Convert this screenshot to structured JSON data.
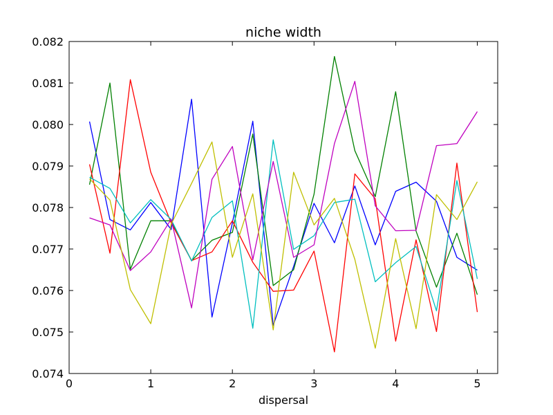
{
  "chart_data": {
    "type": "line",
    "title": "niche width",
    "xlabel": "dispersal",
    "ylabel": "",
    "xlim": [
      0,
      5.25
    ],
    "ylim": [
      0.074,
      0.082
    ],
    "xticks": [
      0,
      1,
      2,
      3,
      4,
      5
    ],
    "xtick_labels": [
      "0",
      "1",
      "2",
      "3",
      "4",
      "5"
    ],
    "yticks": [
      0.074,
      0.075,
      0.076,
      0.077,
      0.078,
      0.079,
      0.08,
      0.081,
      0.082
    ],
    "ytick_labels": [
      "0.074",
      "0.075",
      "0.076",
      "0.077",
      "0.078",
      "0.079",
      "0.080",
      "0.081",
      "0.082"
    ],
    "grid": false,
    "x": [
      0.25,
      0.5,
      0.75,
      1.0,
      1.25,
      1.5,
      1.75,
      2.0,
      2.25,
      2.5,
      2.75,
      3.0,
      3.25,
      3.5,
      3.75,
      4.0,
      4.25,
      4.5,
      4.75,
      5.0
    ],
    "series": [
      {
        "color": "#0000ff",
        "values": [
          0.08007,
          0.07771,
          0.07746,
          0.07812,
          0.07747,
          0.08061,
          0.07536,
          0.07763,
          0.08008,
          0.07516,
          0.07658,
          0.0781,
          0.07715,
          0.07852,
          0.0771,
          0.07839,
          0.07861,
          0.07815,
          0.0768,
          0.07649
        ]
      },
      {
        "color": "#008000",
        "values": [
          0.07855,
          0.081,
          0.07651,
          0.07768,
          0.07768,
          0.07672,
          0.07721,
          0.0774,
          0.07977,
          0.07612,
          0.0765,
          0.07832,
          0.08164,
          0.07937,
          0.07826,
          0.08079,
          0.07743,
          0.07608,
          0.07738,
          0.0759
        ]
      },
      {
        "color": "#ff0000",
        "values": [
          0.07904,
          0.0769,
          0.08108,
          0.07885,
          0.07763,
          0.07672,
          0.07693,
          0.07768,
          0.07668,
          0.07598,
          0.07601,
          0.07695,
          0.07452,
          0.07881,
          0.07821,
          0.07478,
          0.07722,
          0.07501,
          0.07907,
          0.07548
        ]
      },
      {
        "color": "#00bfbf",
        "values": [
          0.07873,
          0.07846,
          0.07763,
          0.07819,
          0.07771,
          0.07671,
          0.07776,
          0.07816,
          0.07509,
          0.07963,
          0.07699,
          0.07732,
          0.07812,
          0.0782,
          0.07621,
          0.07667,
          0.07706,
          0.07551,
          0.07865,
          0.07628
        ]
      },
      {
        "color": "#bf00bf",
        "values": [
          0.07775,
          0.07758,
          0.07648,
          0.07693,
          0.07772,
          0.07558,
          0.07868,
          0.07947,
          0.07674,
          0.07911,
          0.0768,
          0.0771,
          0.07954,
          0.08104,
          0.07804,
          0.07744,
          0.07745,
          0.07949,
          0.07954,
          0.08031
        ]
      },
      {
        "color": "#bfbf00",
        "values": [
          0.07869,
          0.07818,
          0.07602,
          0.0752,
          0.0776,
          0.07858,
          0.07958,
          0.0768,
          0.07833,
          0.07505,
          0.07885,
          0.07758,
          0.07822,
          0.07675,
          0.07461,
          0.07725,
          0.07508,
          0.07831,
          0.07771,
          0.07862
        ]
      }
    ]
  }
}
